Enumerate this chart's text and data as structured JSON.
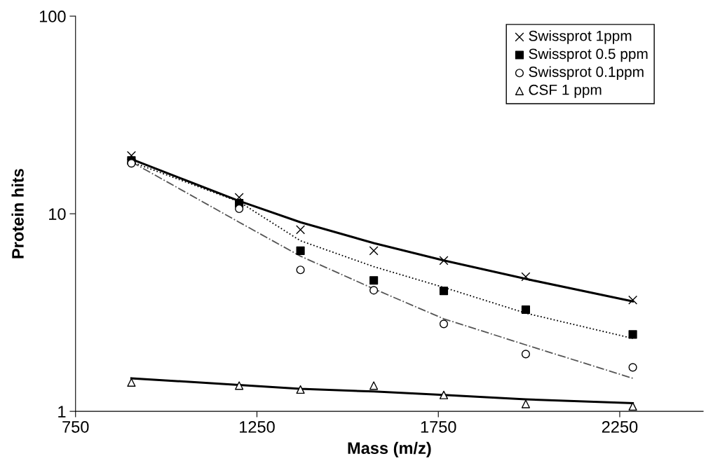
{
  "chart_data": {
    "type": "scatter",
    "xlabel": "Mass (m/z)",
    "ylabel": "Protein hits",
    "xlim": [
      750,
      2480
    ],
    "xticks": [
      750,
      1250,
      1750,
      2250
    ],
    "ylim": [
      1,
      100
    ],
    "yticks": [
      1,
      10,
      100
    ],
    "log": "y",
    "grid": false,
    "legend": "top right",
    "x": [
      904,
      1201,
      1370,
      1572,
      1765,
      1991,
      2286
    ],
    "series": [
      {
        "name": "Swissprot 1ppm",
        "color": "#000000",
        "marker": "cross",
        "values": [
          19.7,
          12.1,
          8.3,
          6.5,
          5.8,
          4.8,
          3.66
        ]
      },
      {
        "name": "Swissprot 0.5 ppm",
        "color": "#000000",
        "marker": "square",
        "values": [
          18.6,
          11.3,
          6.5,
          4.6,
          4.07,
          3.27,
          2.45
        ]
      },
      {
        "name": "Swissprot 0.1ppm",
        "color": "#000000",
        "marker": "circle",
        "values": [
          18.0,
          10.6,
          5.2,
          4.1,
          2.77,
          1.95,
          1.67
        ]
      },
      {
        "name": "CSF 1 ppm",
        "color": "#000000",
        "marker": "triangle",
        "values": [
          1.4,
          1.35,
          1.29,
          1.35,
          1.21,
          1.09,
          1.06
        ]
      },
      {
        "type": "line",
        "color": "#000000",
        "line_style": "solid",
        "x": [
          904,
          1201,
          1370,
          1572,
          1765,
          1991,
          2286
        ],
        "values": [
          18.9,
          11.6,
          9.06,
          7.1,
          5.8,
          4.68,
          3.6
        ]
      },
      {
        "type": "line",
        "color": "#000000",
        "line_style": "dotted",
        "x": [
          904,
          1201,
          1370,
          1572,
          1765,
          1991,
          2286
        ],
        "values": [
          18.3,
          11.5,
          7.3,
          5.4,
          4.24,
          3.14,
          2.34
        ]
      },
      {
        "type": "line",
        "color": "#555555",
        "line_style": "dashdot",
        "x": [
          904,
          1201,
          1370,
          1572,
          1765,
          1991,
          2286
        ],
        "values": [
          18.3,
          9.06,
          6.1,
          4.17,
          2.94,
          2.17,
          1.47
        ]
      },
      {
        "type": "line",
        "color": "#000000",
        "line_style": "solid",
        "x": [
          904,
          1201,
          1370,
          1572,
          1765,
          1991,
          2286
        ],
        "values": [
          1.47,
          1.36,
          1.3,
          1.26,
          1.21,
          1.15,
          1.1
        ]
      }
    ]
  }
}
